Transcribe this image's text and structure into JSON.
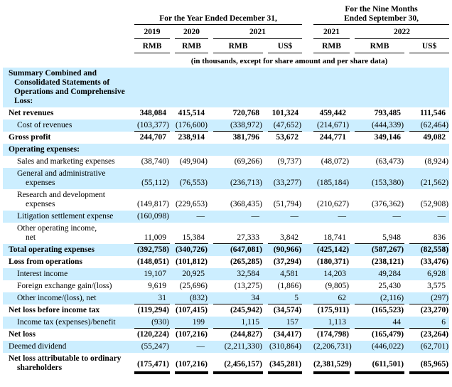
{
  "colors": {
    "shaded_row": "#cceeff",
    "rule": "#000000",
    "text": "#000000"
  },
  "header": {
    "annual_title": "For the Year Ended December 31,",
    "nine_months_title": "For the Nine Months\nEnded September 30,",
    "years": [
      "2019",
      "2020",
      "2021",
      "2021",
      "2022"
    ],
    "currencies": [
      "RMB",
      "RMB",
      "RMB",
      "US$",
      "RMB",
      "RMB",
      "US$"
    ],
    "note": "(in thousands, except for share amount and per share data)"
  },
  "rows": [
    {
      "label": "Summary Combined and\nConsolidated Statements of\nOperations and Comprehensive\nLoss:",
      "values": [],
      "bold": true,
      "shaded": true,
      "section": true
    },
    {
      "label": "Net revenues",
      "values": [
        "348,084",
        "415,514",
        "720,768",
        "101,324",
        "459,442",
        "793,485",
        "111,546"
      ],
      "bold": true
    },
    {
      "label": "Cost of revenues",
      "values": [
        "(103,377)",
        "(176,600)",
        "(338,972)",
        "(47,652)",
        "(214,671)",
        "(444,339)",
        "(62,464)"
      ],
      "indent": true,
      "shaded": true,
      "underline": true
    },
    {
      "label": "Gross profit",
      "values": [
        "244,707",
        "238,914",
        "381,796",
        "53,672",
        "244,771",
        "349,146",
        "49,082"
      ],
      "bold": true
    },
    {
      "label": "Operating expenses:",
      "values": [],
      "bold": true,
      "shaded": true,
      "section": true
    },
    {
      "label": "Sales and marketing expenses",
      "values": [
        "(38,740)",
        "(49,904)",
        "(69,266)",
        "(9,737)",
        "(48,072)",
        "(63,473)",
        "(8,924)"
      ],
      "indent": true
    },
    {
      "label": "General and administrative\nexpenses",
      "values": [
        "(55,112)",
        "(76,553)",
        "(236,713)",
        "(33,277)",
        "(185,184)",
        "(153,380)",
        "(21,562)"
      ],
      "indent": true,
      "shaded": true
    },
    {
      "label": "Research and development\nexpenses",
      "values": [
        "(149,817)",
        "(229,653)",
        "(368,435)",
        "(51,794)",
        "(210,627)",
        "(376,362)",
        "(52,908)"
      ],
      "indent": true
    },
    {
      "label": "Litigation settlement expense",
      "values": [
        "(160,098)",
        "—",
        "—",
        "—",
        "—",
        "—",
        "—"
      ],
      "indent": true,
      "shaded": true
    },
    {
      "label": "Other operating income,\nnet",
      "values": [
        "11,009",
        "15,384",
        "27,333",
        "3,842",
        "18,741",
        "5,948",
        "836"
      ],
      "indent": true,
      "underline": true
    },
    {
      "label": "Total operating expenses",
      "values": [
        "(392,758)",
        "(340,726)",
        "(647,081)",
        "(90,966)",
        "(425,142)",
        "(587,267)",
        "(82,558)"
      ],
      "bold": true,
      "shaded": true
    },
    {
      "label": "Loss from operations",
      "values": [
        "(148,051)",
        "(101,812)",
        "(265,285)",
        "(37,294)",
        "(180,371)",
        "(238,121)",
        "(33,476)"
      ],
      "bold": true
    },
    {
      "label": "Interest income",
      "values": [
        "19,107",
        "20,925",
        "32,584",
        "4,581",
        "14,203",
        "49,284",
        "6,928"
      ],
      "indent": true,
      "shaded": true
    },
    {
      "label": "Foreign exchange gain/(loss)",
      "values": [
        "9,619",
        "(25,696)",
        "(13,275)",
        "(1,866)",
        "(9,805)",
        "25,430",
        "3,575"
      ],
      "indent": true
    },
    {
      "label": "Other income/(loss), net",
      "values": [
        "31",
        "(832)",
        "34",
        "5",
        "62",
        "(2,116)",
        "(297)"
      ],
      "indent": true,
      "shaded": true,
      "underline": true
    },
    {
      "label": "Net loss before income tax",
      "values": [
        "(119,294)",
        "(107,415)",
        "(245,942)",
        "(34,574)",
        "(175,911)",
        "(165,523)",
        "(23,270)"
      ],
      "bold": true
    },
    {
      "label": "Income tax (expenses)/benefit",
      "values": [
        "(930)",
        "199",
        "1,115",
        "157",
        "1,113",
        "44",
        "6"
      ],
      "indent": true,
      "shaded": true,
      "underline": true
    },
    {
      "label": "Net loss",
      "values": [
        "(120,224)",
        "(107,216)",
        "(244,827)",
        "(34,417)",
        "(174,798)",
        "(165,479)",
        "(23,264)"
      ],
      "bold": true
    },
    {
      "label": "Deemed dividend",
      "values": [
        "(55,247)",
        "—",
        "(2,211,330)",
        "(310,864)",
        "(2,206,731)",
        "(446,022)",
        "(62,701)"
      ],
      "shaded": true
    },
    {
      "label": "Net loss attributable to ordinary\nshareholders",
      "values": [
        "(175,471)",
        "(107,216)",
        "(2,456,157)",
        "(345,281)",
        "(2,381,529)",
        "(611,501)",
        "(85,965)"
      ],
      "bold": true,
      "thick": true
    }
  ]
}
